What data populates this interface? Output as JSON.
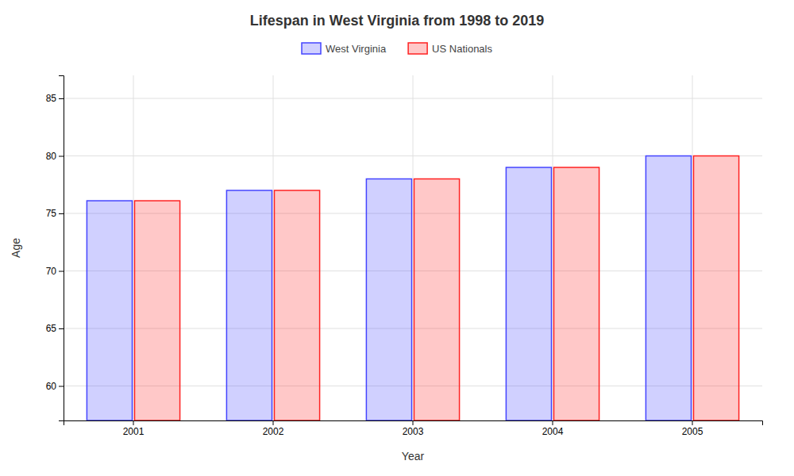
{
  "chart_data": {
    "type": "bar",
    "title": "Lifespan in West Virginia from 1998 to 2019",
    "x_label": "Year",
    "y_label": "Age",
    "categories": [
      "2001",
      "2002",
      "2003",
      "2004",
      "2005"
    ],
    "series": [
      {
        "name": "West Virginia",
        "color": "#4444FF",
        "values": [
          76.1,
          77.0,
          78.0,
          79.0,
          80.0
        ]
      },
      {
        "name": "US Nationals",
        "color": "#FF2222",
        "values": [
          76.1,
          77.0,
          78.0,
          79.0,
          80.0
        ]
      }
    ],
    "ylim": [
      57,
      87
    ],
    "yticks": [
      60,
      65,
      70,
      75,
      80,
      85
    ],
    "grid": true,
    "legend": "top"
  }
}
